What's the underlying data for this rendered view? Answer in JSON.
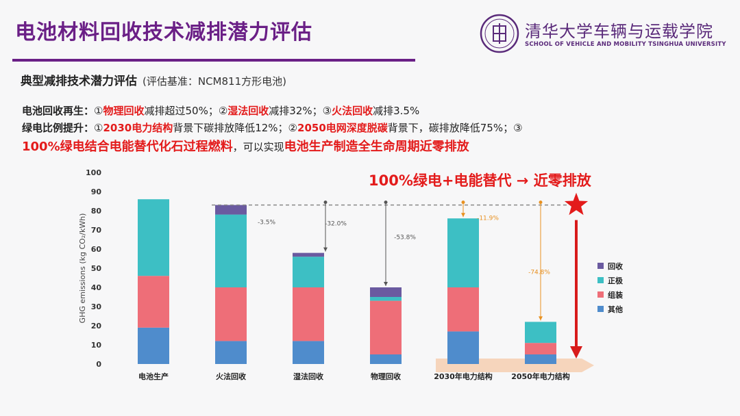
{
  "slide": {
    "title": "电池材料回收技术减排潜力评估",
    "university_cn": "清华大学车辆与运载学院",
    "university_en": "SCHOOL OF VEHICLE AND MOBILITY TSINGHUA UNIVERSITY",
    "subtitle": "典型减排技术潜力评估",
    "subtitle_note": "(评估基准：NCM811方形电池)",
    "line1": {
      "label": "电池回收再生：",
      "p1": "①",
      "r1": "物理回收",
      "p2": "减排超过50%；②",
      "r2": "湿法回收",
      "p3": "减排32%；③",
      "r3": "火法回收",
      "p4": "减排3.5%"
    },
    "line2": {
      "label": "绿电比例提升：",
      "p1": "①",
      "r1": "2030电力结构",
      "p2": "背景下碳排放降低12%；②",
      "r2": "2050电网深度脱碳",
      "p3": "背景下，碳排放降低75%；③"
    },
    "line3": {
      "r1": "100%绿电结合电能替代化石过程燃料",
      "p1": "，可以实现",
      "r2": "电池生产制造全生命周期近零排放"
    },
    "headline": "100%绿电+电能替代 → 近零排放"
  },
  "chart_data": {
    "type": "bar",
    "stacked": true,
    "ylabel": "GHG emissions (kg CO₂/kWh)",
    "ylim": [
      0,
      100
    ],
    "yticks": [
      "0",
      "10",
      "20",
      "30",
      "40",
      "50",
      "60",
      "70",
      "80",
      "90",
      "100"
    ],
    "categories": [
      "电池生产",
      "火法回收",
      "湿法回收",
      "物理回收",
      "2030年电力结构",
      "2050年电力结构"
    ],
    "series": [
      {
        "name": "其他",
        "color": "#4f8ccc",
        "values": [
          19,
          12,
          12,
          5,
          17,
          5
        ]
      },
      {
        "name": "组装",
        "color": "#ee6e78",
        "values": [
          27,
          28,
          28,
          28,
          23,
          6
        ]
      },
      {
        "name": "正极",
        "color": "#3dbfc4",
        "values": [
          40,
          38,
          16,
          2,
          36,
          11
        ]
      },
      {
        "name": "回收",
        "color": "#6a5aa0",
        "values": [
          0,
          5,
          2,
          5,
          0,
          0
        ]
      }
    ],
    "legend_order": [
      "回收",
      "正极",
      "组装",
      "其他"
    ],
    "legend_position": "right",
    "reference_value": 83,
    "annotations": [
      {
        "category": "火法回收",
        "text": "-3.5%",
        "color": "#555555"
      },
      {
        "category": "湿法回收",
        "text": "-32.0%",
        "color": "#555555"
      },
      {
        "category": "物理回收",
        "text": "-53.8%",
        "color": "#555555"
      },
      {
        "category": "2030年电力结构",
        "text": "-11.9%",
        "color": "#e8901f"
      },
      {
        "category": "2050年电力结构",
        "text": "-74.8%",
        "color": "#e8901f"
      }
    ]
  }
}
